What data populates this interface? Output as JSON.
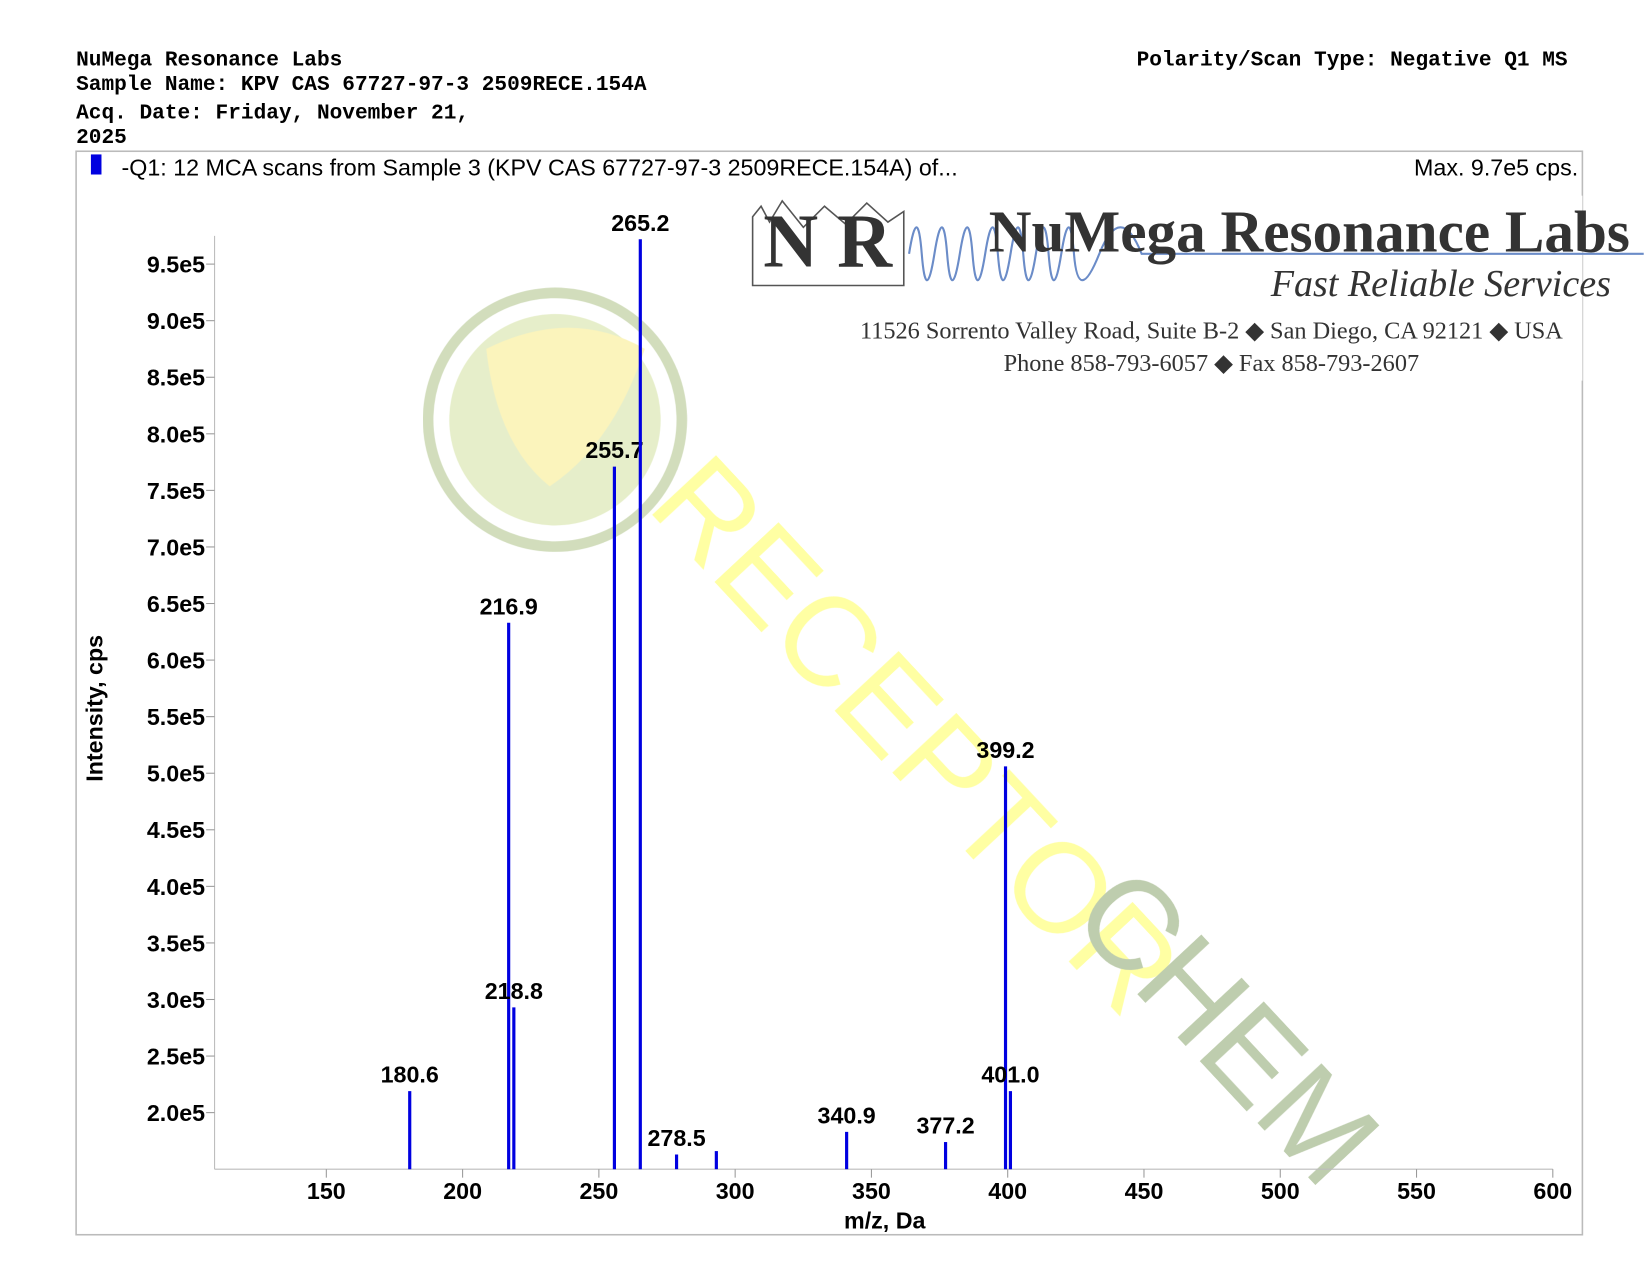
{
  "header": {
    "lab": "NuMega Resonance Labs",
    "sample_name": "Sample Name: KPV CAS 67727-97-3 2509RECE.154A",
    "acq_date_line1": "Acq. Date: Friday, November 21,",
    "acq_date_line2": "2025",
    "polarity": "Polarity/Scan Type: Negative Q1 MS"
  },
  "logo": {
    "letters": "N R",
    "name": "NuMega Resonance Labs",
    "slogan": "Fast Reliable Services",
    "address": "11526 Sorrento Valley Road, Suite B-2 ◆ San Diego, CA 92121 ◆ USA",
    "phone": "Phone 858-793-6057 ◆ Fax 858-793-2607"
  },
  "watermark": {
    "word1": "RECEPTOR",
    "word2": "CHEM"
  },
  "chart_data": {
    "type": "spectrum",
    "title": "-Q1: 12 MCA scans from Sample 3 (KPV CAS 67727-97-3 2509RECE.154A) of...",
    "max_label": "Max. 9.7e5 cps.",
    "x_label": "m/z, Da",
    "y_label": "Intensity, cps",
    "series": [
      {
        "name": "-Q1",
        "color": "#0000e0",
        "x": [
          180.6,
          216.9,
          218.8,
          255.7,
          265.2,
          278.5,
          293.1,
          340.9,
          377.2,
          399.2,
          401.0
        ],
        "x_labels": [
          "180.6",
          "216.9",
          "218.8",
          "255.7",
          "265.2",
          "278.5",
          null,
          "340.9",
          "377.2",
          "399.2",
          "401.0"
        ],
        "values": [
          219000,
          633000,
          293000,
          771000,
          972000,
          163000,
          166000,
          183000,
          174000,
          506000,
          219000
        ]
      }
    ],
    "xlim": [
      109,
      600
    ],
    "xticks": [
      150,
      200,
      250,
      300,
      350,
      400,
      450,
      500,
      550,
      600
    ],
    "ylim": [
      150000,
      975000
    ],
    "yticks": [
      {
        "value": 200000,
        "label": "2.0e5"
      },
      {
        "value": 250000,
        "label": "2.5e5"
      },
      {
        "value": 300000,
        "label": "3.0e5"
      },
      {
        "value": 350000,
        "label": "3.5e5"
      },
      {
        "value": 400000,
        "label": "4.0e5"
      },
      {
        "value": 450000,
        "label": "4.5e5"
      },
      {
        "value": 500000,
        "label": "5.0e5"
      },
      {
        "value": 550000,
        "label": "5.5e5"
      },
      {
        "value": 600000,
        "label": "6.0e5"
      },
      {
        "value": 650000,
        "label": "6.5e5"
      },
      {
        "value": 700000,
        "label": "7.0e5"
      },
      {
        "value": 750000,
        "label": "7.5e5"
      },
      {
        "value": 800000,
        "label": "8.0e5"
      },
      {
        "value": 850000,
        "label": "8.5e5"
      },
      {
        "value": 900000,
        "label": "9.0e5"
      },
      {
        "value": 950000,
        "label": "9.5e5"
      }
    ]
  }
}
